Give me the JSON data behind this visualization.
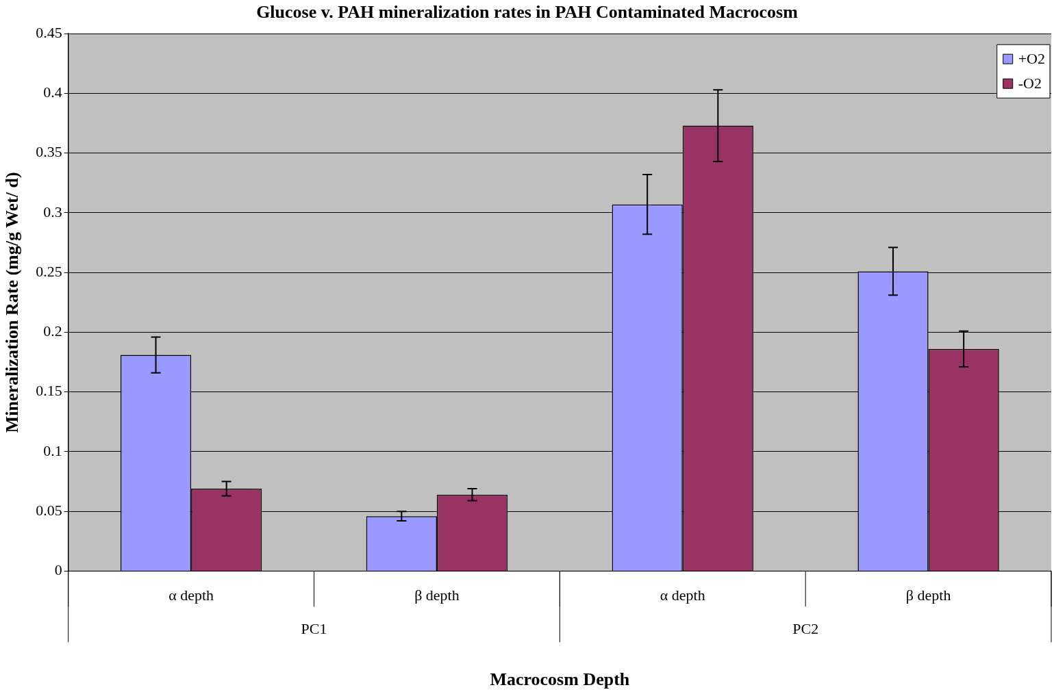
{
  "chart_data": {
    "type": "bar",
    "title": "Glucose v. PAH mineralization rates in PAH Contaminated Macrocosm",
    "xlabel": "Macrocosm Depth",
    "ylabel": "Mineralization Rate (mg/g Wet/ d)",
    "categories": [
      "α depth",
      "β depth",
      "α depth",
      "β depth"
    ],
    "annotations": [
      "PC1",
      "PC2"
    ],
    "series": [
      {
        "name": "+O2",
        "color": "#9999ff",
        "values": [
          0.181,
          0.046,
          0.307,
          0.251
        ],
        "errors": [
          0.015,
          0.004,
          0.025,
          0.02
        ]
      },
      {
        "name": "-O2",
        "color": "#993366",
        "values": [
          0.069,
          0.064,
          0.373,
          0.186
        ],
        "errors": [
          0.006,
          0.005,
          0.03,
          0.015
        ]
      }
    ],
    "ylim": [
      0,
      0.45
    ],
    "yticks": [
      0,
      0.05,
      0.1,
      0.15,
      0.2,
      0.25,
      0.3,
      0.35,
      0.4,
      0.45
    ],
    "grid": "y",
    "legend": "top right"
  }
}
